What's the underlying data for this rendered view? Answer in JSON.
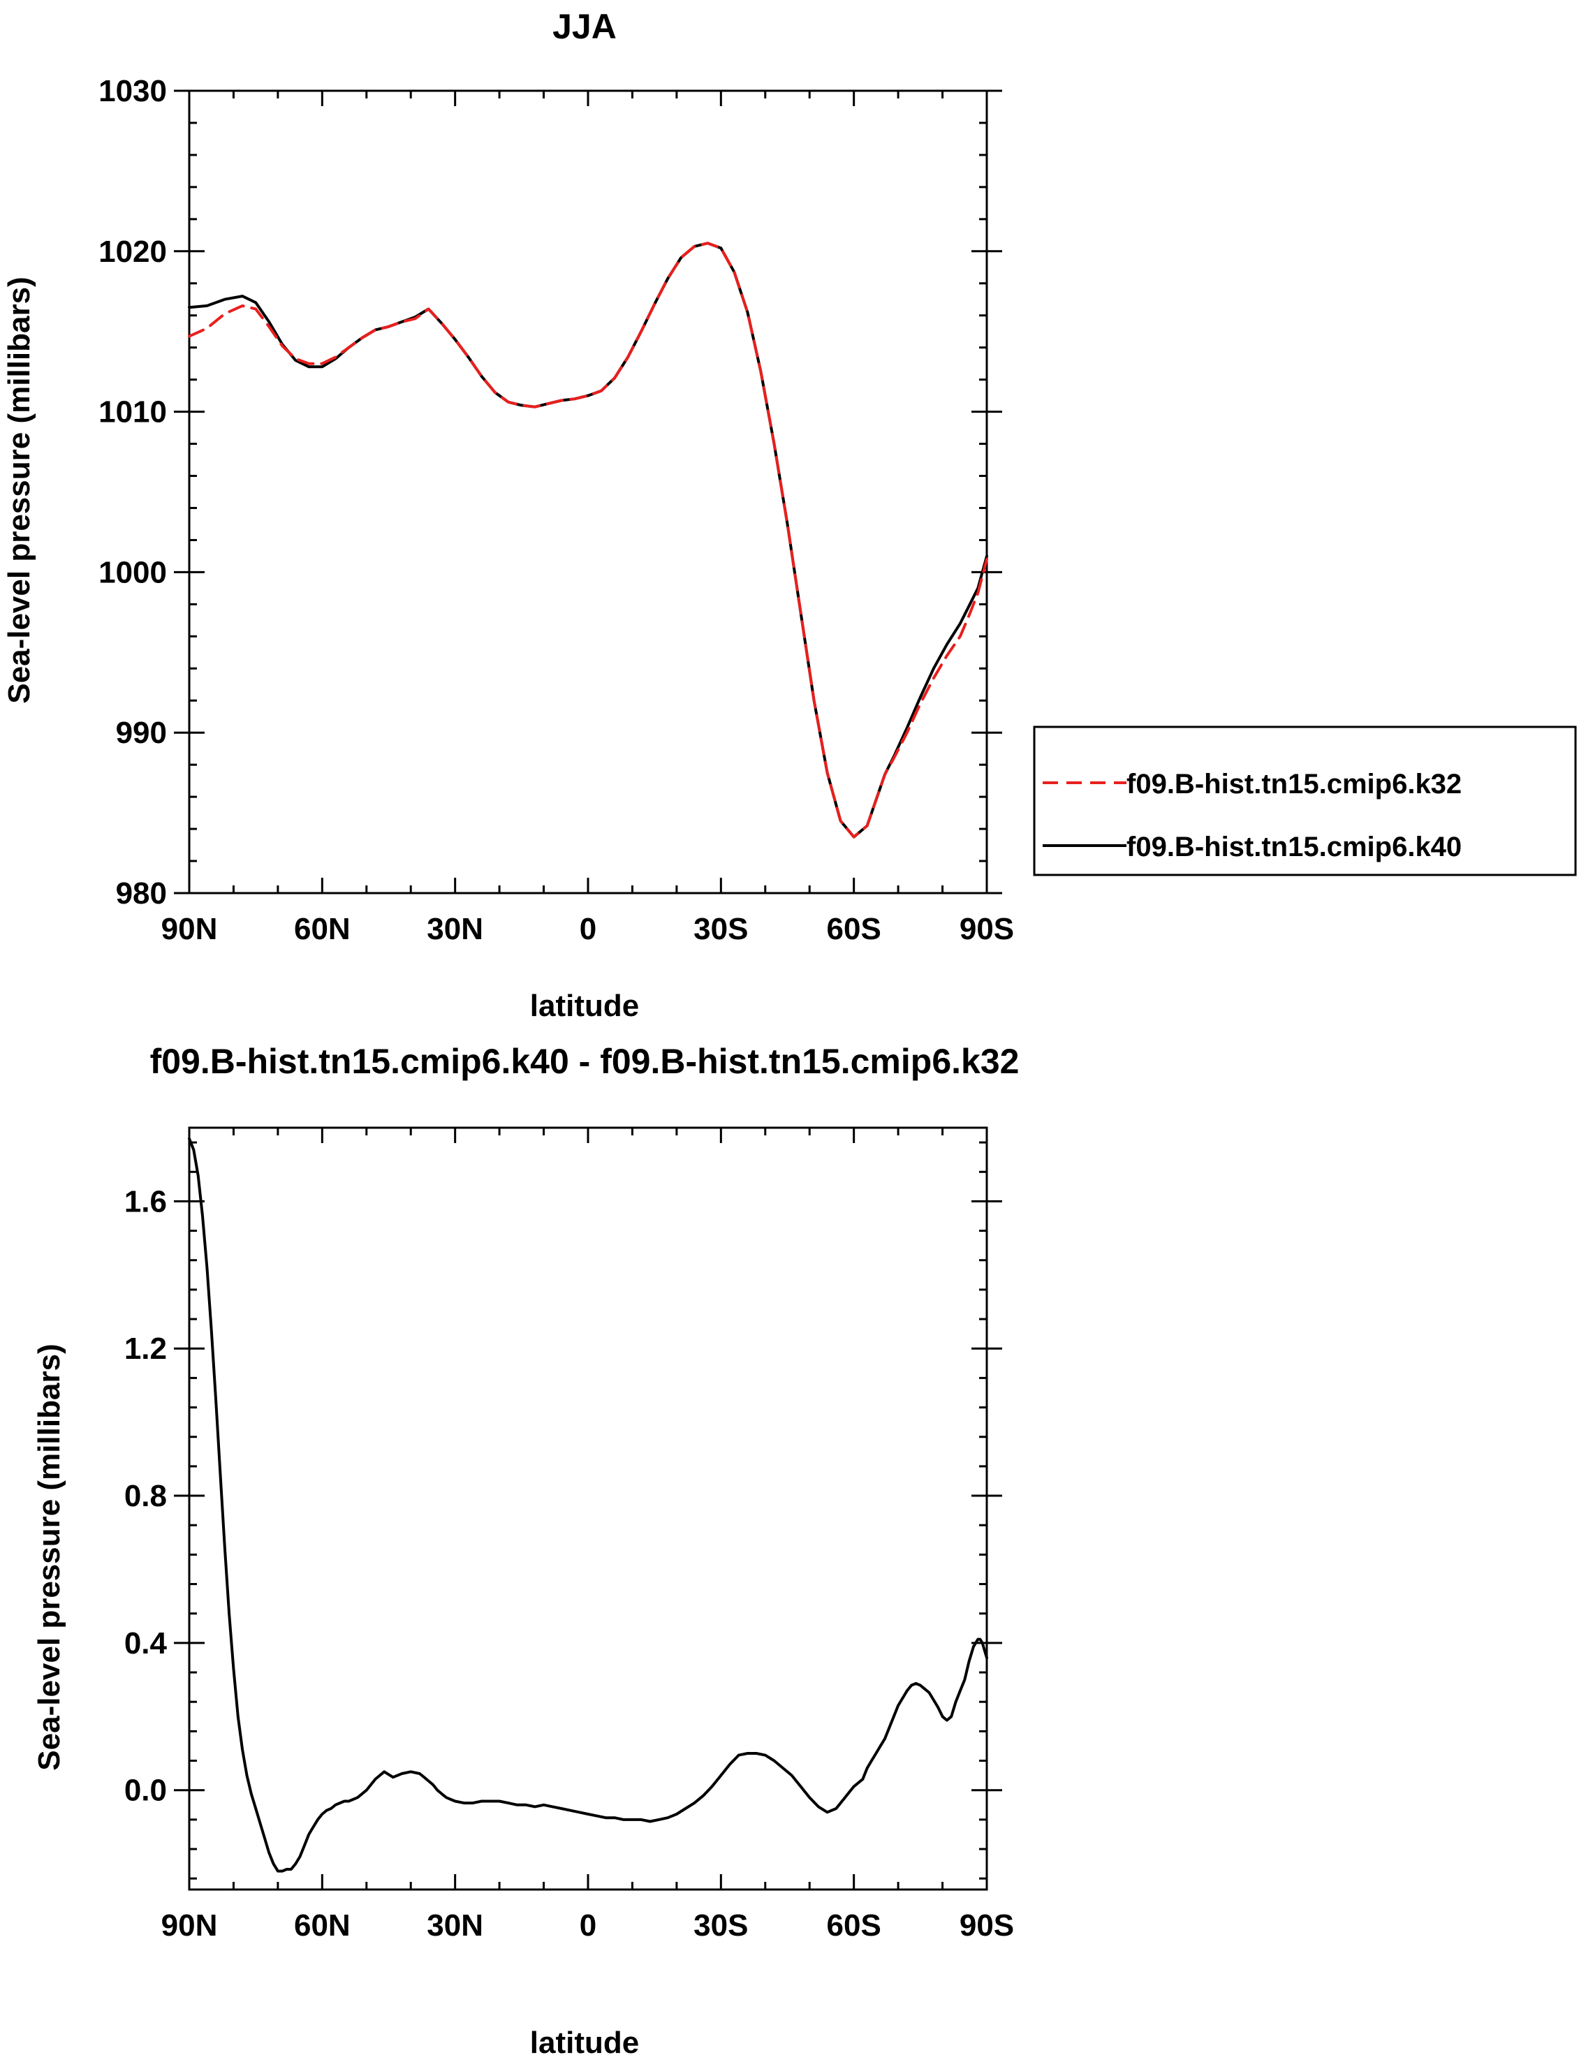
{
  "chart_data": [
    {
      "type": "line",
      "title": "JJA",
      "xlabel": "latitude",
      "ylabel": "Sea-level pressure (millibars)",
      "xlim": [
        90,
        -90
      ],
      "ylim": [
        980,
        1030
      ],
      "x_tick_values": [
        90,
        60,
        30,
        0,
        -30,
        -60,
        -90
      ],
      "x_tick_labels": [
        "90N",
        "60N",
        "30N",
        "0",
        "30S",
        "60S",
        "90S"
      ],
      "y_ticks": [
        980,
        990,
        1000,
        1010,
        1020,
        1030
      ],
      "y_tick_labels": [
        "980",
        "990",
        "1000",
        "1010",
        "1020",
        "1030"
      ],
      "legend_position": "right",
      "series": [
        {
          "name": "f09.B-hist.tn15.cmip6.k32",
          "color": "#e8201e",
          "dash": "dashed",
          "x": [
            90,
            86,
            82,
            78,
            75,
            72,
            69,
            66,
            63,
            60,
            57,
            54,
            51,
            48,
            45,
            42,
            39,
            36,
            33,
            30,
            27,
            24,
            21,
            18,
            15,
            12,
            9,
            6,
            3,
            0,
            -3,
            -6,
            -9,
            -12,
            -15,
            -18,
            -21,
            -24,
            -27,
            -30,
            -33,
            -36,
            -39,
            -42,
            -45,
            -48,
            -51,
            -54,
            -57,
            -60,
            -63,
            -65,
            -67,
            -69,
            -72,
            -75,
            -78,
            -81,
            -84,
            -86,
            -88,
            -90
          ],
          "y": [
            1014.7,
            1015.2,
            1016.1,
            1016.6,
            1016.4,
            1015.3,
            1014.1,
            1013.3,
            1013.0,
            1013.0,
            1013.4,
            1014.0,
            1014.6,
            1015.1,
            1015.3,
            1015.6,
            1015.8,
            1016.4,
            1015.5,
            1014.5,
            1013.4,
            1012.2,
            1011.2,
            1010.6,
            1010.4,
            1010.3,
            1010.5,
            1010.7,
            1010.8,
            1011.0,
            1011.3,
            1012.1,
            1013.4,
            1015.0,
            1016.7,
            1018.3,
            1019.6,
            1020.3,
            1020.5,
            1020.2,
            1018.7,
            1016.2,
            1012.5,
            1008.0,
            1003.0,
            997.5,
            992.0,
            987.5,
            984.5,
            983.5,
            984.2,
            985.8,
            987.4,
            988.4,
            990.0,
            991.8,
            993.4,
            994.8,
            996.0,
            997.3,
            998.7,
            1000.8
          ]
        },
        {
          "name": "f09.B-hist.tn15.cmip6.k40",
          "color": "#000000",
          "dash": "solid",
          "x": [
            90,
            86,
            82,
            78,
            75,
            72,
            69,
            66,
            63,
            60,
            57,
            54,
            51,
            48,
            45,
            42,
            39,
            36,
            33,
            30,
            27,
            24,
            21,
            18,
            15,
            12,
            9,
            6,
            3,
            0,
            -3,
            -6,
            -9,
            -12,
            -15,
            -18,
            -21,
            -24,
            -27,
            -30,
            -33,
            -36,
            -39,
            -42,
            -45,
            -48,
            -51,
            -54,
            -57,
            -60,
            -63,
            -65,
            -67,
            -69,
            -72,
            -75,
            -78,
            -81,
            -84,
            -86,
            -88,
            -90
          ],
          "y": [
            1016.5,
            1016.6,
            1017.0,
            1017.2,
            1016.8,
            1015.6,
            1014.2,
            1013.2,
            1012.8,
            1012.8,
            1013.3,
            1014.0,
            1014.6,
            1015.1,
            1015.3,
            1015.6,
            1015.9,
            1016.4,
            1015.5,
            1014.5,
            1013.4,
            1012.2,
            1011.2,
            1010.6,
            1010.4,
            1010.3,
            1010.5,
            1010.7,
            1010.8,
            1011.0,
            1011.3,
            1012.1,
            1013.4,
            1015.0,
            1016.7,
            1018.3,
            1019.6,
            1020.3,
            1020.5,
            1020.2,
            1018.7,
            1016.2,
            1012.5,
            1008.0,
            1003.0,
            997.5,
            992.0,
            987.5,
            984.5,
            983.5,
            984.2,
            985.8,
            987.4,
            988.5,
            990.3,
            992.2,
            994.0,
            995.5,
            996.8,
            997.9,
            999.0,
            1001.0
          ]
        }
      ]
    },
    {
      "type": "line",
      "title": "f09.B-hist.tn15.cmip6.k40 - f09.B-hist.tn15.cmip6.k32",
      "xlabel": "latitude",
      "ylabel": "Sea-level pressure (millibars)",
      "xlim": [
        90,
        -90
      ],
      "ylim": [
        -0.27,
        1.8
      ],
      "x_tick_values": [
        90,
        60,
        30,
        0,
        -30,
        -60,
        -90
      ],
      "x_tick_labels": [
        "90N",
        "60N",
        "30N",
        "0",
        "30S",
        "60S",
        "90S"
      ],
      "y_ticks": [
        0.0,
        0.4,
        0.8,
        1.2,
        1.6
      ],
      "y_tick_labels": [
        "0.0",
        "0.4",
        "0.8",
        "1.2",
        "1.6"
      ],
      "series": [
        {
          "color": "#000000",
          "dash": "solid",
          "x": [
            90,
            89,
            88,
            87,
            86,
            85,
            84,
            83,
            82,
            81,
            80,
            79,
            78,
            77,
            76,
            75,
            74,
            73,
            72,
            71,
            70,
            69,
            68,
            67,
            66,
            65,
            64,
            63,
            62,
            61,
            60,
            59,
            58,
            57,
            56,
            55,
            54,
            53,
            52,
            50,
            48,
            46,
            44,
            42,
            40,
            38,
            37,
            36,
            35,
            34,
            33,
            32,
            31,
            30,
            28,
            26,
            24,
            22,
            20,
            18,
            16,
            14,
            12,
            10,
            8,
            6,
            4,
            2,
            0,
            -2,
            -4,
            -6,
            -8,
            -10,
            -12,
            -14,
            -16,
            -18,
            -20,
            -22,
            -24,
            -26,
            -28,
            -30,
            -32,
            -34,
            -36,
            -38,
            -40,
            -42,
            -44,
            -46,
            -48,
            -50,
            -52,
            -54,
            -56,
            -57,
            -58,
            -59,
            -60,
            -62,
            -63,
            -64,
            -65,
            -66,
            -67,
            -68,
            -69,
            -70,
            -71,
            -72,
            -73,
            -74,
            -75,
            -76,
            -77,
            -78,
            -79,
            -80,
            -81,
            -82,
            -83,
            -84,
            -85,
            -86,
            -87,
            -88,
            -88.5,
            -89,
            -89.5,
            -90
          ],
          "y": [
            1.77,
            1.74,
            1.67,
            1.56,
            1.42,
            1.25,
            1.06,
            0.86,
            0.66,
            0.48,
            0.33,
            0.2,
            0.11,
            0.04,
            -0.01,
            -0.05,
            -0.09,
            -0.13,
            -0.17,
            -0.2,
            -0.22,
            -0.22,
            -0.215,
            -0.215,
            -0.2,
            -0.18,
            -0.15,
            -0.12,
            -0.1,
            -0.08,
            -0.065,
            -0.055,
            -0.05,
            -0.04,
            -0.035,
            -0.03,
            -0.03,
            -0.025,
            -0.02,
            0.0,
            0.03,
            0.05,
            0.035,
            0.045,
            0.05,
            0.045,
            0.035,
            0.025,
            0.015,
            0.0,
            -0.01,
            -0.02,
            -0.025,
            -0.03,
            -0.035,
            -0.035,
            -0.03,
            -0.03,
            -0.03,
            -0.035,
            -0.04,
            -0.04,
            -0.045,
            -0.04,
            -0.045,
            -0.05,
            -0.055,
            -0.06,
            -0.065,
            -0.07,
            -0.075,
            -0.075,
            -0.08,
            -0.08,
            -0.08,
            -0.085,
            -0.08,
            -0.075,
            -0.065,
            -0.05,
            -0.035,
            -0.015,
            0.01,
            0.04,
            0.07,
            0.095,
            0.1,
            0.1,
            0.095,
            0.08,
            0.06,
            0.04,
            0.01,
            -0.02,
            -0.045,
            -0.06,
            -0.05,
            -0.035,
            -0.02,
            -0.005,
            0.01,
            0.03,
            0.06,
            0.08,
            0.1,
            0.12,
            0.14,
            0.17,
            0.2,
            0.23,
            0.25,
            0.27,
            0.285,
            0.29,
            0.285,
            0.275,
            0.265,
            0.245,
            0.225,
            0.2,
            0.19,
            0.2,
            0.24,
            0.27,
            0.3,
            0.35,
            0.39,
            0.41,
            0.41,
            0.4,
            0.38,
            0.36
          ]
        }
      ]
    }
  ]
}
